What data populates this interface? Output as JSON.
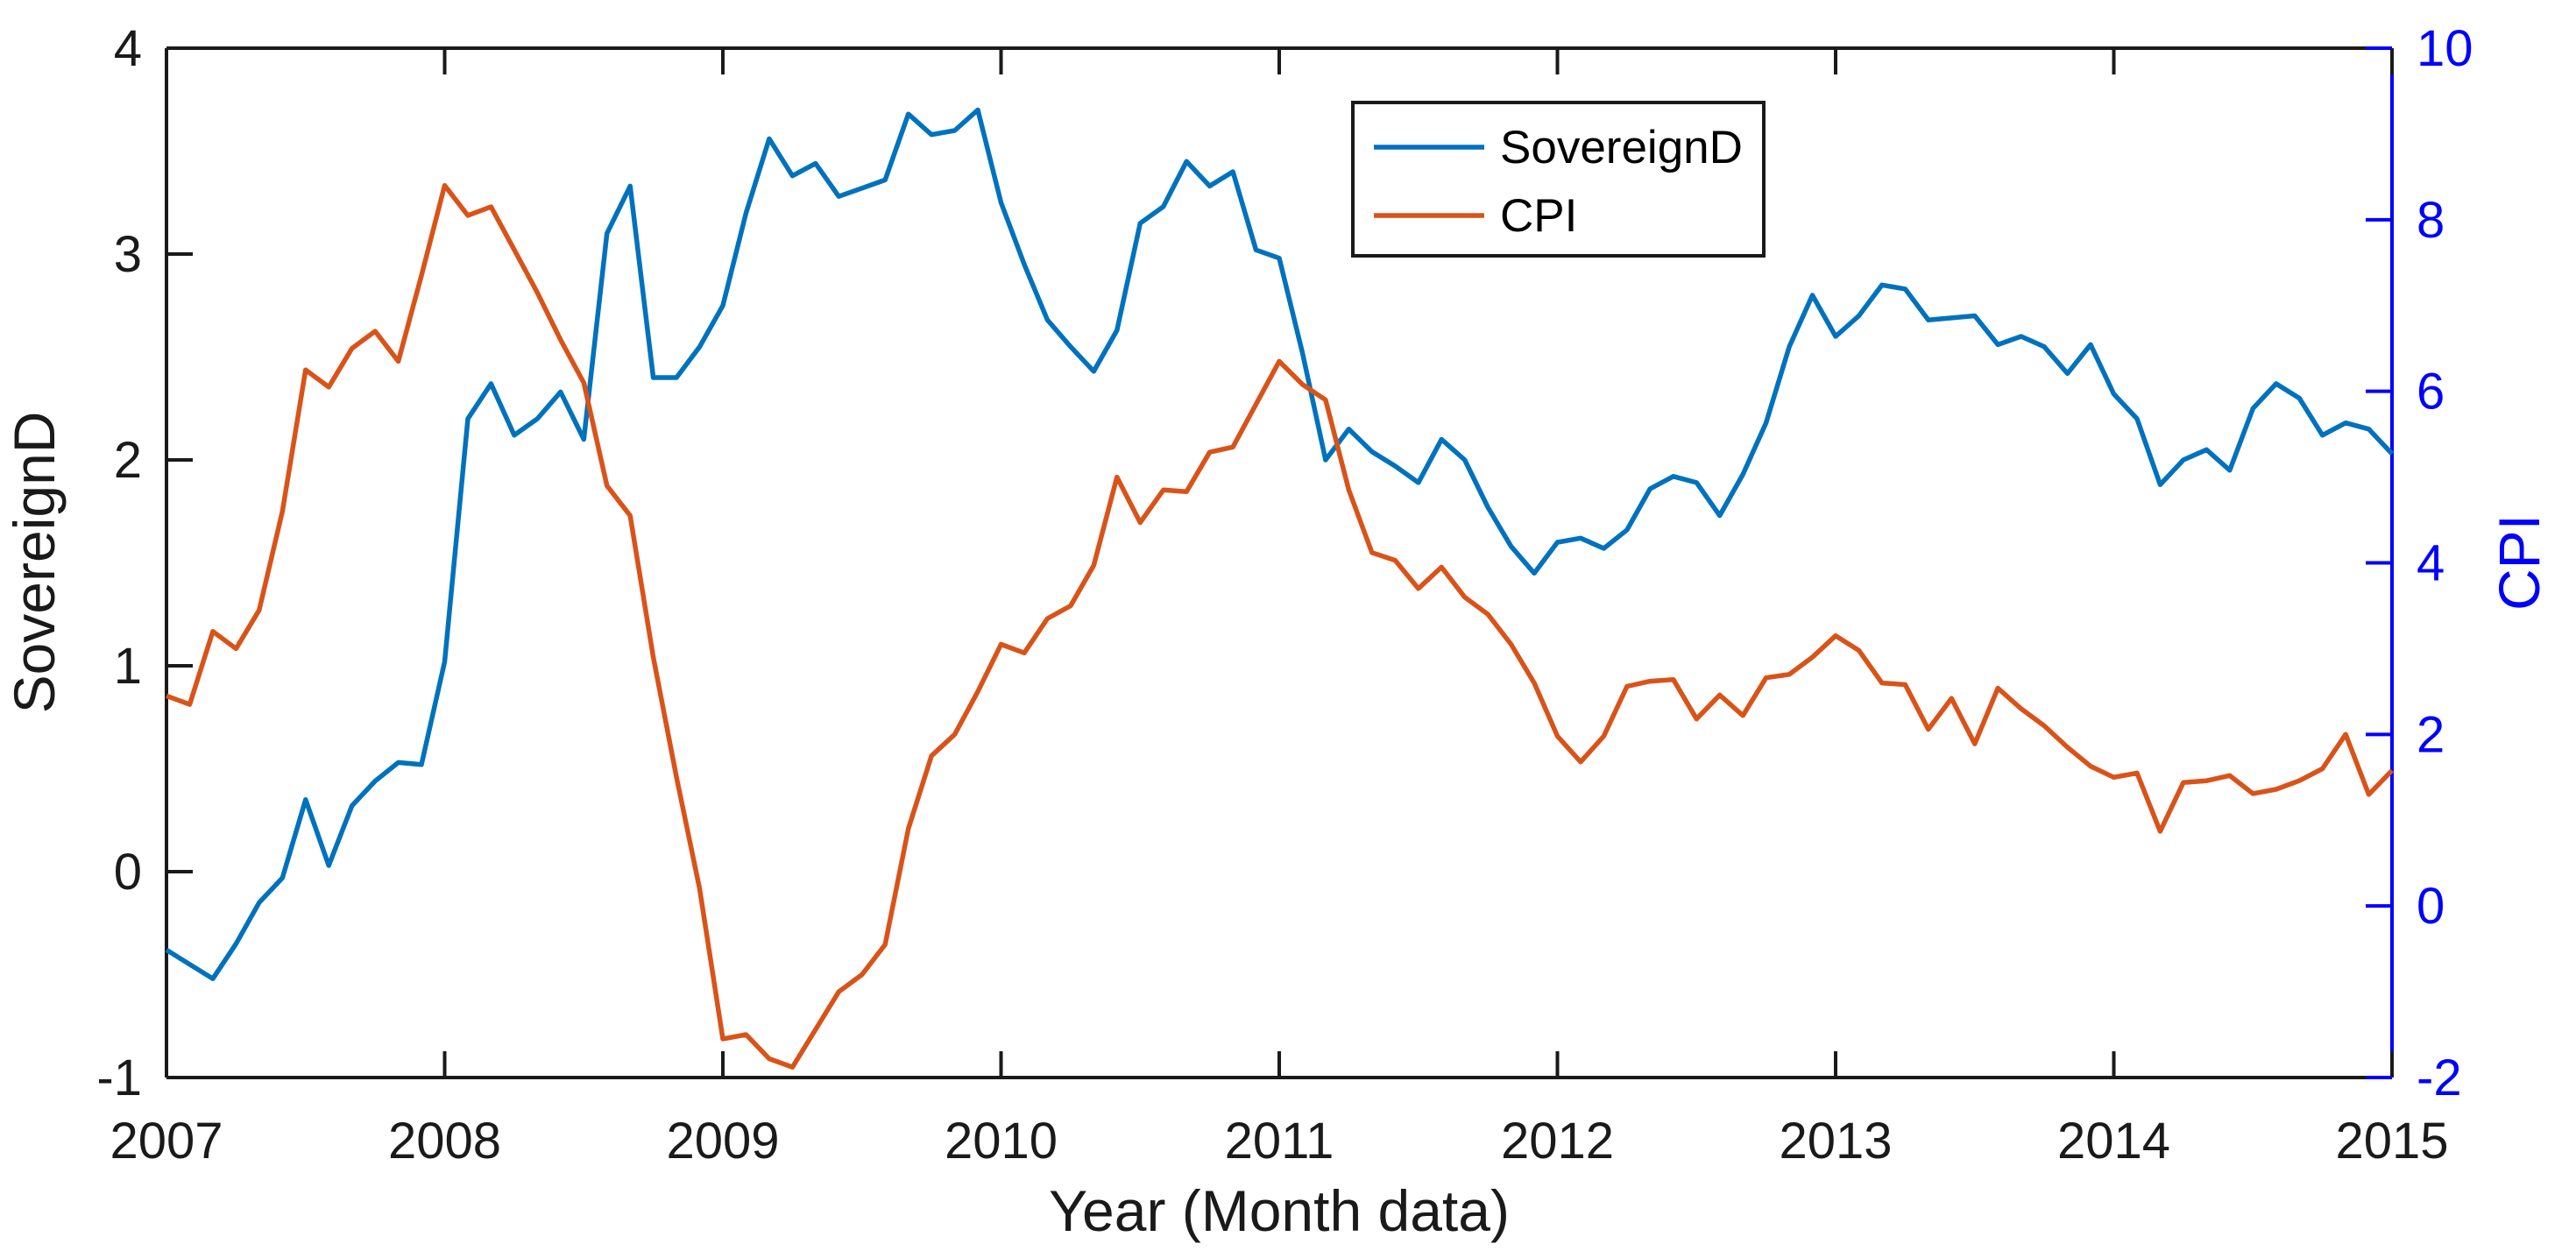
{
  "chart_data": {
    "type": "line",
    "title": "",
    "xlabel": "Year (Month data)",
    "x_interval": "monthly",
    "x_axis": {
      "tick_values": [
        2007,
        2008,
        2009,
        2010,
        2011,
        2012,
        2013,
        2014,
        2015
      ],
      "tick_labels": [
        "2007",
        "2008",
        "2009",
        "2010",
        "2011",
        "2012",
        "2013",
        "2014",
        "2015"
      ],
      "range": [
        2007,
        2015
      ]
    },
    "left_axis": {
      "label": "SovereignD",
      "tick_values": [
        -1,
        0,
        1,
        2,
        3,
        4
      ],
      "tick_labels": [
        "-1",
        "0",
        "1",
        "2",
        "3",
        "4"
      ],
      "range": [
        -1,
        4
      ],
      "color": "#1a1a1a"
    },
    "right_axis": {
      "label": "CPI",
      "tick_values": [
        -2,
        0,
        2,
        4,
        6,
        8,
        10
      ],
      "tick_labels": [
        "-2",
        "0",
        "2",
        "4",
        "6",
        "8",
        "10"
      ],
      "range": [
        -2,
        10
      ],
      "color": "#0000ff"
    },
    "legend": {
      "position": "north",
      "entries": [
        {
          "label": "SovereignD",
          "color": "#0072BD"
        },
        {
          "label": "CPI",
          "color": "#D95319"
        }
      ]
    },
    "grid": "off",
    "series": [
      {
        "name": "SovereignD",
        "axis": "left",
        "color": "#0072BD",
        "x_start": "2007-01",
        "x_end": "2015-01",
        "values": [
          -0.38,
          -0.45,
          -0.52,
          -0.35,
          -0.15,
          -0.03,
          0.35,
          0.03,
          0.32,
          0.44,
          0.53,
          0.52,
          1.02,
          2.2,
          2.37,
          2.12,
          2.2,
          2.33,
          2.1,
          3.1,
          3.33,
          2.4,
          2.4,
          2.55,
          2.75,
          3.2,
          3.56,
          3.38,
          3.44,
          3.28,
          3.32,
          3.36,
          3.68,
          3.58,
          3.6,
          3.7,
          3.25,
          2.95,
          2.68,
          2.55,
          2.43,
          2.63,
          3.15,
          3.23,
          3.45,
          3.33,
          3.4,
          3.02,
          2.98,
          2.52,
          2.0,
          2.15,
          2.04,
          1.97,
          1.89,
          2.1,
          2.0,
          1.77,
          1.58,
          1.45,
          1.6,
          1.62,
          1.57,
          1.66,
          1.86,
          1.92,
          1.89,
          1.73,
          1.93,
          2.18,
          2.55,
          2.8,
          2.6,
          2.7,
          2.85,
          2.83,
          2.68,
          2.69,
          2.7,
          2.56,
          2.6,
          2.55,
          2.42,
          2.56,
          2.32,
          2.2,
          1.88,
          2.0,
          2.05,
          1.95,
          2.25,
          2.37,
          2.3,
          2.12,
          2.18,
          2.15,
          2.03
        ]
      },
      {
        "name": "CPI",
        "axis": "right",
        "color": "#D95319",
        "x_start": "2007-01",
        "x_end": "2015-01",
        "values": [
          2.45,
          2.35,
          3.2,
          3.0,
          3.45,
          4.6,
          6.25,
          6.05,
          6.5,
          6.7,
          6.35,
          7.35,
          8.4,
          8.05,
          8.15,
          7.65,
          7.15,
          6.6,
          6.1,
          4.9,
          4.55,
          2.9,
          1.5,
          0.2,
          -1.55,
          -1.5,
          -1.78,
          -1.88,
          -1.44,
          -1.0,
          -0.8,
          -0.45,
          0.9,
          1.75,
          2.0,
          2.5,
          3.05,
          2.95,
          3.35,
          3.5,
          3.97,
          5.0,
          4.47,
          4.85,
          4.83,
          5.29,
          5.35,
          5.85,
          6.35,
          6.08,
          5.9,
          4.85,
          4.12,
          4.03,
          3.7,
          3.95,
          3.6,
          3.4,
          3.05,
          2.6,
          1.98,
          1.68,
          1.98,
          2.56,
          2.62,
          2.64,
          2.18,
          2.46,
          2.22,
          2.66,
          2.7,
          2.9,
          3.15,
          2.98,
          2.6,
          2.58,
          2.06,
          2.42,
          1.89,
          2.54,
          2.3,
          2.1,
          1.85,
          1.63,
          1.5,
          1.55,
          0.87,
          1.44,
          1.46,
          1.52,
          1.31,
          1.36,
          1.46,
          1.6,
          2.0,
          1.3,
          1.58
        ]
      }
    ]
  }
}
